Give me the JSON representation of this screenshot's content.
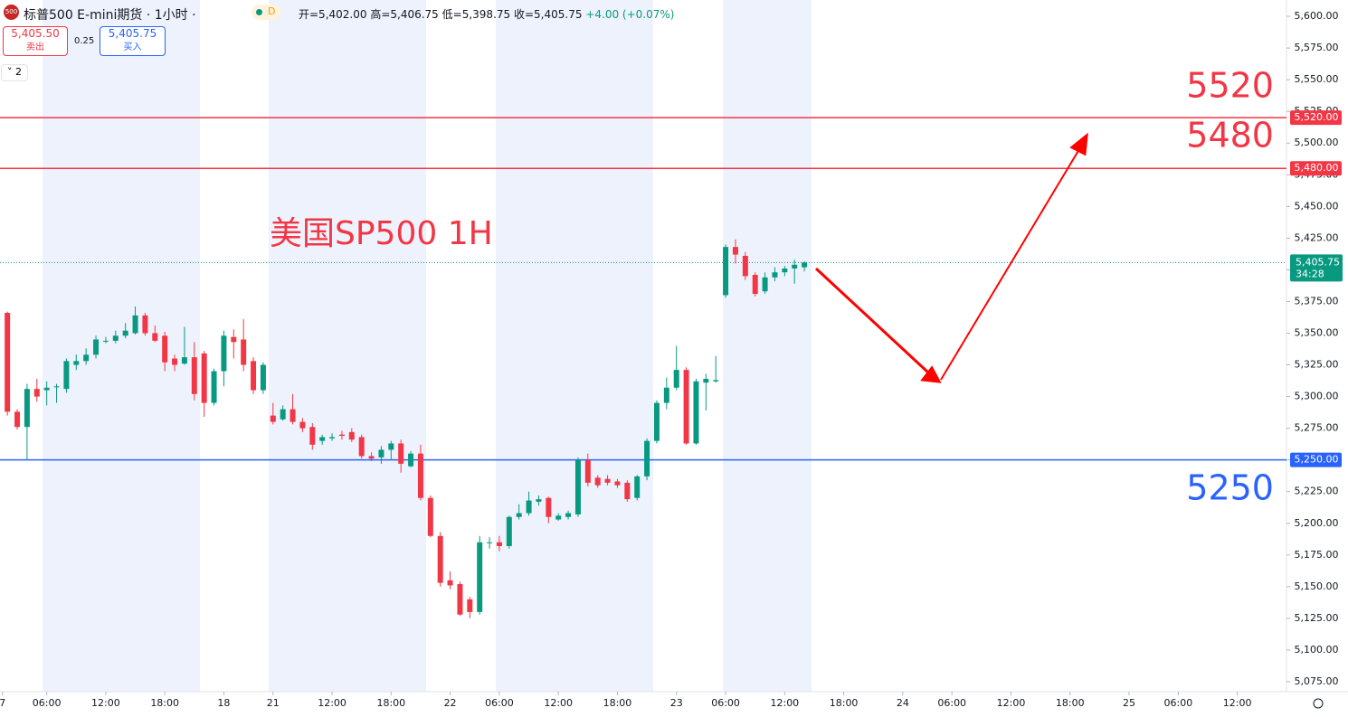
{
  "header": {
    "symbol": "标普500 E-mini期货 · 1小时 ·",
    "badge": "D",
    "ohlc": [
      "开=5,402.00",
      "高=5,406.75",
      "低=5,398.75",
      "收=5,405.75"
    ],
    "change": "+4.00 (+0.07%)",
    "sell_price": "5,405.50",
    "sell_label": "卖出",
    "spread": "0.25",
    "buy_price": "5,405.75",
    "buy_label": "买入",
    "indicators": "2"
  },
  "chart_data": {
    "type": "candlestick",
    "up_color": "#089981",
    "down_color": "#f23645",
    "grid": false,
    "x": [
      0,
      1,
      2,
      3,
      4,
      5,
      6,
      7,
      8,
      9,
      10,
      11,
      12,
      13,
      14,
      15,
      16,
      17,
      18,
      19,
      20,
      21,
      22,
      23,
      24,
      25,
      26,
      27,
      28,
      29,
      30,
      31,
      32,
      33,
      34,
      35,
      36,
      37,
      38,
      39,
      40,
      41,
      42,
      43,
      44,
      45,
      46,
      47,
      48,
      49,
      50,
      51,
      52,
      53,
      54,
      55,
      56,
      57,
      58,
      59,
      60,
      61,
      62,
      63,
      64,
      65,
      66,
      67,
      68,
      69,
      70,
      71,
      72,
      73,
      74,
      75,
      76,
      77,
      78,
      79,
      80,
      81
    ],
    "open": [
      5366,
      5288,
      5276,
      5306,
      5305,
      5308,
      5306,
      5325,
      5328,
      5333,
      5344,
      5344,
      5348,
      5350,
      5364,
      5350,
      5348,
      5330,
      5326,
      5331,
      5334,
      5295,
      5320,
      5347,
      5345,
      5328,
      5305,
      5285,
      5282,
      5290,
      5280,
      5276,
      5265,
      5267,
      5270,
      5272,
      5268,
      5253,
      5252,
      5258,
      5263,
      5245,
      5255,
      5220,
      5190,
      5155,
      5152,
      5140,
      5130,
      5185,
      5185,
      5182,
      5205,
      5208,
      5217,
      5220,
      5203,
      5205,
      5207,
      5250,
      5236,
      5235,
      5233,
      5232,
      5220,
      5237,
      5265,
      5295,
      5307,
      5321,
      5263,
      5311,
      5312,
      5380,
      5418,
      5411,
      5396,
      5383,
      5394,
      5398,
      5401,
      5402
    ],
    "high": [
      5367,
      5290,
      5310,
      5314,
      5312,
      5310,
      5330,
      5333,
      5338,
      5348,
      5347,
      5352,
      5358,
      5371,
      5366,
      5356,
      5351,
      5333,
      5355,
      5343,
      5336,
      5322,
      5352,
      5353,
      5361,
      5331,
      5327,
      5295,
      5293,
      5302,
      5283,
      5279,
      5270,
      5271,
      5273,
      5275,
      5270,
      5256,
      5261,
      5265,
      5266,
      5257,
      5262,
      5222,
      5193,
      5162,
      5154,
      5142,
      5190,
      5189,
      5190,
      5206,
      5215,
      5225,
      5222,
      5221,
      5208,
      5210,
      5252,
      5255,
      5238,
      5238,
      5235,
      5234,
      5238,
      5267,
      5297,
      5315,
      5340,
      5323,
      5314,
      5318,
      5332,
      5420,
      5424,
      5414,
      5398,
      5398,
      5402,
      5403,
      5408,
      5406.75
    ],
    "low": [
      5285,
      5274,
      5250,
      5296,
      5293,
      5295,
      5303,
      5321,
      5325,
      5330,
      5342,
      5342,
      5346,
      5349,
      5348,
      5343,
      5320,
      5320,
      5325,
      5297,
      5284,
      5293,
      5308,
      5330,
      5320,
      5302,
      5302,
      5278,
      5281,
      5278,
      5272,
      5258,
      5262,
      5265,
      5266,
      5264,
      5251,
      5249,
      5247,
      5250,
      5240,
      5244,
      5218,
      5189,
      5150,
      5148,
      5127,
      5125,
      5128,
      5180,
      5178,
      5180,
      5203,
      5206,
      5214,
      5200,
      5202,
      5203,
      5205,
      5229,
      5228,
      5230,
      5228,
      5217,
      5218,
      5234,
      5263,
      5290,
      5305,
      5262,
      5262,
      5289,
      5311,
      5378,
      5405,
      5392,
      5379,
      5381,
      5391,
      5395,
      5389,
      5398.75
    ],
    "close": [
      5288,
      5276,
      5306,
      5300,
      5307,
      5308,
      5328,
      5328,
      5333,
      5345,
      5344,
      5348,
      5352,
      5364,
      5350,
      5344,
      5327,
      5325,
      5331,
      5302,
      5295,
      5320,
      5348,
      5343,
      5325,
      5305,
      5325,
      5280,
      5290,
      5280,
      5275,
      5262,
      5268,
      5268,
      5269,
      5266,
      5253,
      5251,
      5258,
      5263,
      5247,
      5255,
      5220,
      5190,
      5153,
      5151,
      5128,
      5130,
      5185,
      5185,
      5182,
      5205,
      5208,
      5218,
      5219,
      5205,
      5206,
      5208,
      5250,
      5232,
      5230,
      5232,
      5230,
      5219,
      5237,
      5265,
      5295,
      5307,
      5321,
      5263,
      5312,
      5314,
      5313,
      5418,
      5412,
      5395,
      5381,
      5394,
      5398,
      5401,
      5404,
      5405.75
    ],
    "xlim": [
      -0.75,
      130
    ],
    "ylim": [
      5612.86,
      5067.14
    ],
    "xticks": [
      {
        "value": -0.5,
        "label": "7"
      },
      {
        "value": 4,
        "label": "06:00"
      },
      {
        "value": 10,
        "label": "12:00"
      },
      {
        "value": 16,
        "label": "18:00"
      },
      {
        "value": 22,
        "label": "18"
      },
      {
        "value": 27,
        "label": "21"
      },
      {
        "value": 33,
        "label": "12:00"
      },
      {
        "value": 39,
        "label": "18:00"
      },
      {
        "value": 45,
        "label": "22"
      },
      {
        "value": 50,
        "label": "06:00"
      },
      {
        "value": 56,
        "label": "12:00"
      },
      {
        "value": 62,
        "label": "18:00"
      },
      {
        "value": 68,
        "label": "23"
      },
      {
        "value": 73,
        "label": "06:00"
      },
      {
        "value": 79,
        "label": "12:00"
      },
      {
        "value": 85,
        "label": "18:00"
      },
      {
        "value": 91,
        "label": "24"
      },
      {
        "value": 96,
        "label": "06:00"
      },
      {
        "value": 102,
        "label": "12:00"
      },
      {
        "value": 108,
        "label": "18:00"
      },
      {
        "value": 114,
        "label": "25"
      },
      {
        "value": 119,
        "label": "06:00"
      },
      {
        "value": 125,
        "label": "12:00"
      }
    ],
    "yticks": [
      {
        "value": 5600,
        "label": "5,600.00"
      },
      {
        "value": 5575,
        "label": "5,575.00"
      },
      {
        "value": 5550,
        "label": "5,550.00"
      },
      {
        "value": 5525,
        "label": "5,525.00"
      },
      {
        "value": 5500,
        "label": "5,500.00"
      },
      {
        "value": 5475,
        "label": "5,475.00"
      },
      {
        "value": 5450,
        "label": "5,450.00"
      },
      {
        "value": 5425,
        "label": "5,425.00"
      },
      {
        "value": 5400,
        "label": "5,400.00"
      },
      {
        "value": 5375,
        "label": "5,375.00"
      },
      {
        "value": 5350,
        "label": "5,350.00"
      },
      {
        "value": 5325,
        "label": "5,325.00"
      },
      {
        "value": 5300,
        "label": "5,300.00"
      },
      {
        "value": 5275,
        "label": "5,275.00"
      },
      {
        "value": 5250,
        "label": "5,250.00"
      },
      {
        "value": 5225,
        "label": "5,225.00"
      },
      {
        "value": 5200,
        "label": "5,200.00"
      },
      {
        "value": 5175,
        "label": "5,175.00"
      },
      {
        "value": 5150,
        "label": "5,150.00"
      },
      {
        "value": 5125,
        "label": "5,125.00"
      },
      {
        "value": 5100,
        "label": "5,100.00"
      },
      {
        "value": 5075,
        "label": "5,075.00"
      }
    ],
    "hlines": [
      {
        "value": 5520,
        "label": "5,520.00",
        "color": "#f23645"
      },
      {
        "value": 5480,
        "label": "5,480.00",
        "color": "#f23645"
      },
      {
        "value": 5250,
        "label": "5,250.00",
        "color": "#2962ff"
      }
    ],
    "last_price": {
      "value": 5405.75,
      "label": "5,405.75",
      "countdown": "34:28",
      "color": "#089981"
    },
    "annotations": [
      {
        "text": "美国SP500 1H",
        "color": "#f23645"
      },
      {
        "text": "5520",
        "color": "#f23645"
      },
      {
        "text": "5480",
        "color": "#f23645"
      },
      {
        "text": "5250",
        "color": "#2962ff"
      }
    ]
  }
}
